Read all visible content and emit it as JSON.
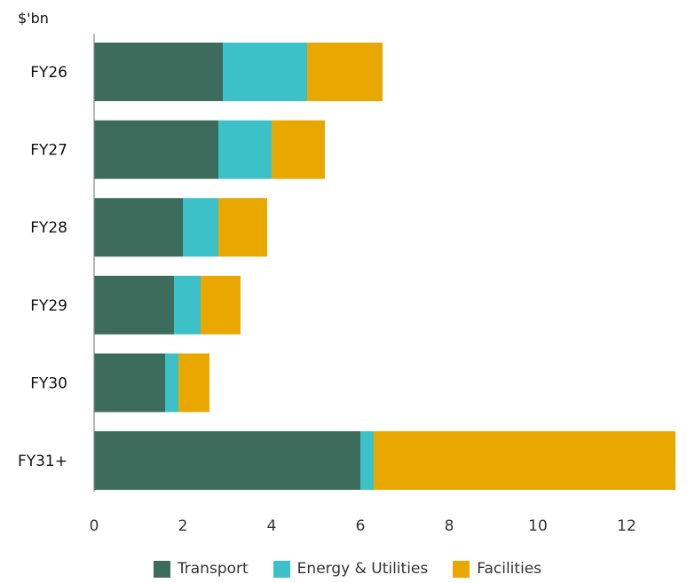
{
  "chart_data": {
    "type": "bar",
    "orientation": "horizontal",
    "stacked": true,
    "unit_label": "$'bn",
    "categories": [
      "FY26",
      "FY27",
      "FY28",
      "FY29",
      "FY30",
      "FY31+"
    ],
    "series": [
      {
        "name": "Transport",
        "color": "#3d6b5c",
        "values": [
          2.9,
          2.8,
          2.0,
          1.8,
          1.6,
          6.0
        ]
      },
      {
        "name": "Energy & Utilities",
        "color": "#3dc1c8",
        "values": [
          1.9,
          1.2,
          0.8,
          0.6,
          0.3,
          0.3
        ]
      },
      {
        "name": "Facilities",
        "color": "#e9a800",
        "values": [
          1.7,
          1.2,
          1.1,
          0.9,
          0.7,
          6.8
        ]
      }
    ],
    "x_ticks": [
      "0",
      "2",
      "4",
      "6",
      "8",
      "10",
      "12"
    ],
    "xlim": [
      0,
      13.1
    ],
    "grid": false,
    "legend_position": "bottom"
  }
}
